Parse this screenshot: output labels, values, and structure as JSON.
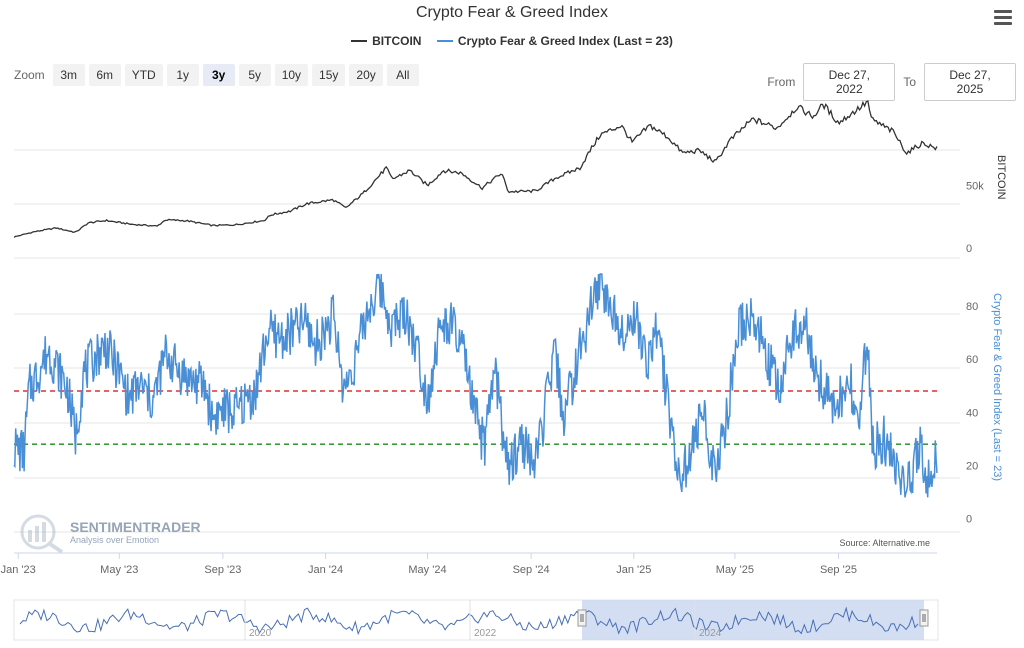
{
  "title": "Crypto Fear & Greed Index",
  "legend": {
    "items": [
      {
        "label": "BITCOIN",
        "color": "#333333"
      },
      {
        "label": "Crypto Fear & Greed Index (Last = 23)",
        "color": "#4a8fd6"
      }
    ]
  },
  "zoom": {
    "label": "Zoom",
    "buttons": [
      "3m",
      "6m",
      "YTD",
      "1y",
      "3y",
      "5y",
      "10y",
      "15y",
      "20y",
      "All"
    ],
    "active": "3y"
  },
  "range": {
    "from_label": "From",
    "from_value": "Dec 27, 2022",
    "to_label": "To",
    "to_value": "Dec 27, 2025"
  },
  "watermark": {
    "brand": "SENTIMENTRADER",
    "tagline": "Analysis over Emotion"
  },
  "source": "Source: Alternative.me",
  "chart_data": {
    "type": "line",
    "x_axis": {
      "tick_labels": [
        "Jan '23",
        "May '23",
        "Sep '23",
        "Jan '24",
        "May '24",
        "Sep '24",
        "Jan '25",
        "May '25",
        "Sep '25"
      ],
      "range": [
        "2022-12-27",
        "2025-12-27"
      ]
    },
    "top_panel": {
      "series_name": "BITCOIN",
      "axis_label": "BITCOIN",
      "ticks": [
        {
          "value": 0,
          "label": "0"
        },
        {
          "value": 50000,
          "label": "50k"
        }
      ],
      "ylim": [
        0,
        128000
      ],
      "color": "#333333",
      "points": [
        [
          "2022-12-27",
          16800
        ],
        [
          "2023-01-20",
          21000
        ],
        [
          "2023-02-15",
          24000
        ],
        [
          "2023-03-10",
          20500
        ],
        [
          "2023-03-25",
          28000
        ],
        [
          "2023-04-15",
          30000
        ],
        [
          "2023-05-15",
          27000
        ],
        [
          "2023-06-15",
          25500
        ],
        [
          "2023-06-25",
          30500
        ],
        [
          "2023-07-20",
          29800
        ],
        [
          "2023-08-20",
          26000
        ],
        [
          "2023-09-15",
          26500
        ],
        [
          "2023-10-20",
          30000
        ],
        [
          "2023-10-28",
          34500
        ],
        [
          "2023-11-20",
          37500
        ],
        [
          "2023-12-10",
          43500
        ],
        [
          "2024-01-10",
          46500
        ],
        [
          "2024-01-25",
          40000
        ],
        [
          "2024-02-15",
          52000
        ],
        [
          "2024-03-13",
          72000
        ],
        [
          "2024-03-20",
          63000
        ],
        [
          "2024-04-10",
          70000
        ],
        [
          "2024-05-01",
          58000
        ],
        [
          "2024-05-20",
          70000
        ],
        [
          "2024-06-10",
          68000
        ],
        [
          "2024-07-05",
          56000
        ],
        [
          "2024-07-28",
          68000
        ],
        [
          "2024-08-05",
          53000
        ],
        [
          "2024-09-06",
          53500
        ],
        [
          "2024-09-30",
          64000
        ],
        [
          "2024-10-29",
          72000
        ],
        [
          "2024-11-12",
          88000
        ],
        [
          "2024-11-22",
          98500
        ],
        [
          "2024-12-17",
          106000
        ],
        [
          "2024-12-30",
          92500
        ],
        [
          "2025-01-20",
          106000
        ],
        [
          "2025-02-10",
          97000
        ],
        [
          "2025-02-28",
          84000
        ],
        [
          "2025-03-20",
          86000
        ],
        [
          "2025-04-08",
          76500
        ],
        [
          "2025-04-25",
          94000
        ],
        [
          "2025-05-22",
          111000
        ],
        [
          "2025-06-20",
          104000
        ],
        [
          "2025-07-14",
          121000
        ],
        [
          "2025-08-02",
          113000
        ],
        [
          "2025-08-14",
          123000
        ],
        [
          "2025-09-01",
          108000
        ],
        [
          "2025-10-06",
          125000
        ],
        [
          "2025-10-10",
          111000
        ],
        [
          "2025-11-05",
          101000
        ],
        [
          "2025-11-21",
          84000
        ],
        [
          "2025-12-10",
          92000
        ],
        [
          "2025-12-27",
          87500
        ]
      ]
    },
    "bottom_panel": {
      "series_name": "Crypto Fear & Greed Index (Last = 23)",
      "axis_label": "Crypto Fear & Greed Index (Last = 23)",
      "ticks": [
        0,
        20,
        40,
        60,
        80
      ],
      "ylim": [
        -5,
        98
      ],
      "color": "#4a8fd6",
      "last_value": 23,
      "reference_lines": [
        {
          "value": 48,
          "color": "#e03030"
        },
        {
          "value": 28,
          "color": "#1a8a1a"
        }
      ],
      "points": [
        [
          "2022-12-27",
          27
        ],
        [
          "2023-01-08",
          25
        ],
        [
          "2023-01-14",
          49
        ],
        [
          "2023-01-25",
          55
        ],
        [
          "2023-02-05",
          63
        ],
        [
          "2023-02-15",
          58
        ],
        [
          "2023-03-01",
          48
        ],
        [
          "2023-03-10",
          31
        ],
        [
          "2023-03-20",
          55
        ],
        [
          "2023-04-05",
          62
        ],
        [
          "2023-04-15",
          65
        ],
        [
          "2023-05-01",
          55
        ],
        [
          "2023-05-12",
          45
        ],
        [
          "2023-05-25",
          50
        ],
        [
          "2023-06-10",
          44
        ],
        [
          "2023-06-25",
          62
        ],
        [
          "2023-07-10",
          56
        ],
        [
          "2023-07-25",
          52
        ],
        [
          "2023-08-10",
          50
        ],
        [
          "2023-08-20",
          38
        ],
        [
          "2023-09-01",
          41
        ],
        [
          "2023-09-15",
          40
        ],
        [
          "2023-09-25",
          43
        ],
        [
          "2023-10-10",
          48
        ],
        [
          "2023-10-24",
          70
        ],
        [
          "2023-11-10",
          68
        ],
        [
          "2023-11-25",
          71
        ],
        [
          "2023-12-08",
          74
        ],
        [
          "2023-12-20",
          65
        ],
        [
          "2024-01-10",
          76
        ],
        [
          "2024-01-23",
          48
        ],
        [
          "2024-02-05",
          60
        ],
        [
          "2024-02-20",
          78
        ],
        [
          "2024-03-05",
          88
        ],
        [
          "2024-03-20",
          72
        ],
        [
          "2024-04-05",
          78
        ],
        [
          "2024-04-20",
          62
        ],
        [
          "2024-05-01",
          45
        ],
        [
          "2024-05-15",
          70
        ],
        [
          "2024-05-28",
          74
        ],
        [
          "2024-06-15",
          60
        ],
        [
          "2024-06-25",
          40
        ],
        [
          "2024-07-08",
          27
        ],
        [
          "2024-07-20",
          57
        ],
        [
          "2024-08-05",
          17
        ],
        [
          "2024-08-20",
          30
        ],
        [
          "2024-09-06",
          20
        ],
        [
          "2024-09-20",
          45
        ],
        [
          "2024-09-29",
          62
        ],
        [
          "2024-10-10",
          38
        ],
        [
          "2024-10-25",
          58
        ],
        [
          "2024-11-12",
          80
        ],
        [
          "2024-11-22",
          90
        ],
        [
          "2024-12-05",
          78
        ],
        [
          "2024-12-20",
          72
        ],
        [
          "2025-01-05",
          75
        ],
        [
          "2025-01-15",
          58
        ],
        [
          "2025-01-28",
          72
        ],
        [
          "2025-02-10",
          45
        ],
        [
          "2025-02-25",
          14
        ],
        [
          "2025-03-10",
          25
        ],
        [
          "2025-03-25",
          40
        ],
        [
          "2025-04-08",
          15
        ],
        [
          "2025-04-22",
          40
        ],
        [
          "2025-05-05",
          72
        ],
        [
          "2025-05-22",
          76
        ],
        [
          "2025-06-10",
          60
        ],
        [
          "2025-06-22",
          47
        ],
        [
          "2025-07-10",
          72
        ],
        [
          "2025-07-25",
          72
        ],
        [
          "2025-08-05",
          55
        ],
        [
          "2025-08-20",
          45
        ],
        [
          "2025-09-01",
          44
        ],
        [
          "2025-09-15",
          52
        ],
        [
          "2025-09-25",
          30
        ],
        [
          "2025-10-05",
          70
        ],
        [
          "2025-10-11",
          27
        ],
        [
          "2025-10-25",
          30
        ],
        [
          "2025-11-05",
          21
        ],
        [
          "2025-11-14",
          15
        ],
        [
          "2025-11-21",
          10
        ],
        [
          "2025-12-01",
          22
        ],
        [
          "2025-12-08",
          28
        ],
        [
          "2025-12-15",
          15
        ],
        [
          "2025-12-27",
          23
        ]
      ]
    },
    "navigator": {
      "tick_labels": [
        "2020",
        "2022",
        "2024"
      ],
      "selected_range": [
        "2022-12-27",
        "2025-12-27"
      ]
    }
  }
}
